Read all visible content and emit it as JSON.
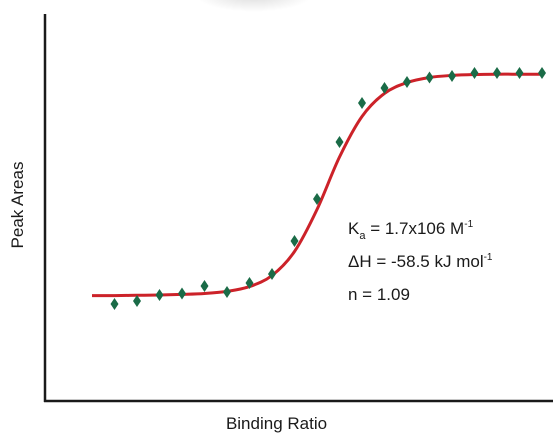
{
  "chart_data": {
    "type": "scatter",
    "xlabel": "Binding Ratio",
    "ylabel": "Peak Areas",
    "xlim": [
      0,
      10
    ],
    "ylim": [
      0,
      10
    ],
    "grid": false,
    "series": [
      {
        "kind": "points",
        "marker": "diamond",
        "color": "#1a6b47",
        "x": [
          0.5,
          1.0,
          1.5,
          2.0,
          2.5,
          3.0,
          3.5,
          4.0,
          4.5,
          5.0,
          5.5,
          6.0,
          6.5,
          7.0,
          7.5,
          8.0,
          8.5,
          9.0,
          9.5,
          10.0
        ],
        "y": [
          1.7,
          1.8,
          2.0,
          2.05,
          2.3,
          2.1,
          2.4,
          2.7,
          3.8,
          5.2,
          7.1,
          8.4,
          8.9,
          9.1,
          9.25,
          9.3,
          9.4,
          9.4,
          9.4,
          9.4
        ]
      },
      {
        "kind": "fit",
        "color": "#cc2229",
        "x": [
          0.0,
          0.5,
          1.0,
          1.5,
          2.0,
          2.5,
          3.0,
          3.5,
          4.0,
          4.5,
          5.0,
          5.5,
          6.0,
          6.5,
          7.0,
          7.5,
          8.0,
          8.5,
          9.0,
          9.5,
          10.0
        ],
        "y": [
          1.98,
          1.98,
          1.99,
          2.0,
          2.02,
          2.05,
          2.12,
          2.28,
          2.65,
          3.45,
          4.85,
          6.6,
          7.95,
          8.72,
          9.08,
          9.25,
          9.32,
          9.35,
          9.36,
          9.36,
          9.36
        ]
      }
    ],
    "annotations": {
      "ka_symbol": "K",
      "ka_sub": "a",
      "ka_value": " = 1.7x106 M",
      "ka_exp": "-1",
      "dh_value": "ΔH = -58.5 kJ mol",
      "dh_exp": "-1",
      "n_value": "n = 1.09"
    }
  }
}
